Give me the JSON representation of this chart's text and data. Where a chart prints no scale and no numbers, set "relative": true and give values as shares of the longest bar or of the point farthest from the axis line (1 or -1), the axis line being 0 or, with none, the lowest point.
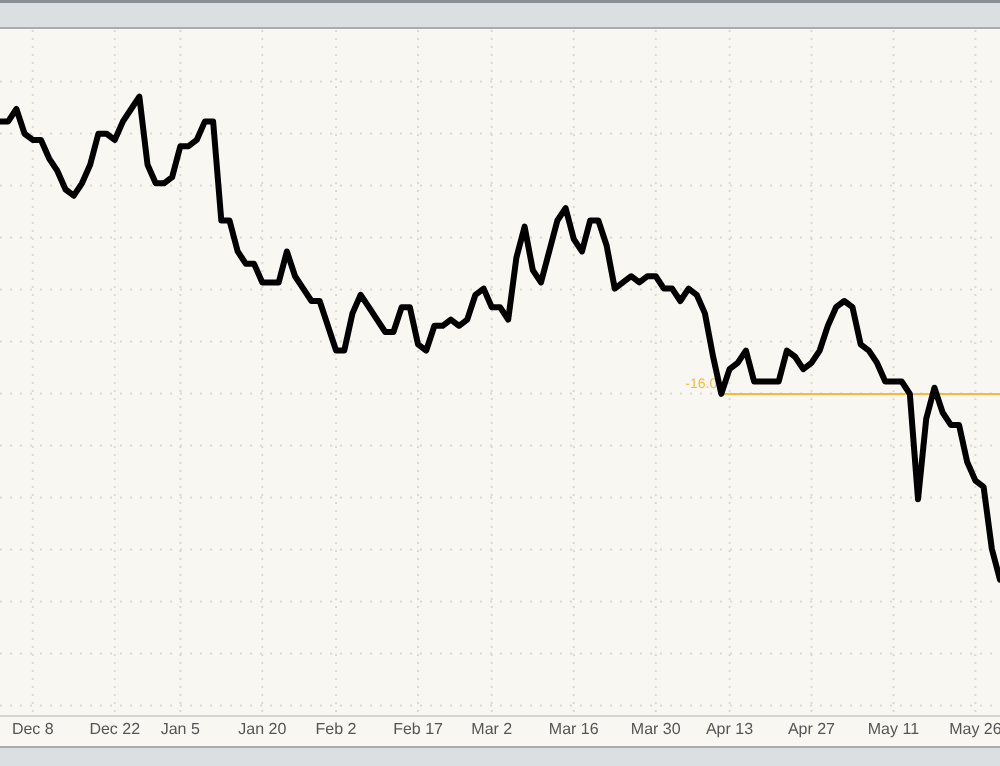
{
  "chart_data": {
    "type": "line",
    "relative": true,
    "grid": true,
    "marker": "none",
    "line_style": "solid",
    "categories": [
      null,
      null,
      null,
      null,
      "Dec 8",
      null,
      null,
      null,
      null,
      null,
      null,
      null,
      null,
      null,
      "Dec 22",
      null,
      null,
      null,
      null,
      null,
      null,
      null,
      "Jan 5",
      null,
      null,
      null,
      null,
      null,
      null,
      null,
      null,
      null,
      "Jan 20",
      null,
      null,
      null,
      null,
      null,
      null,
      null,
      null,
      "Feb 2",
      null,
      null,
      null,
      null,
      null,
      null,
      null,
      null,
      null,
      "Feb 17",
      null,
      null,
      null,
      null,
      null,
      null,
      null,
      null,
      "Mar 2",
      null,
      null,
      null,
      null,
      null,
      null,
      null,
      null,
      null,
      "Mar 16",
      null,
      null,
      null,
      null,
      null,
      null,
      null,
      null,
      null,
      "Mar 30",
      null,
      null,
      null,
      null,
      null,
      null,
      null,
      null,
      "Apr 13",
      null,
      null,
      null,
      null,
      null,
      null,
      null,
      null,
      null,
      "Apr 27",
      null,
      null,
      null,
      null,
      null,
      null,
      null,
      null,
      null,
      "May 11",
      null,
      null,
      null,
      null,
      null,
      null,
      null,
      null,
      null,
      "May 26",
      null,
      null,
      null
    ],
    "series": [
      {
        "color": "#000000",
        "values": [
          0.96,
          0.96,
          0.98,
          0.94,
          0.93,
          0.93,
          0.9,
          0.88,
          0.85,
          0.84,
          0.86,
          0.89,
          0.94,
          0.94,
          0.93,
          0.96,
          0.98,
          1.0,
          0.89,
          0.86,
          0.86,
          0.87,
          0.92,
          0.92,
          0.93,
          0.96,
          0.96,
          0.8,
          0.8,
          0.75,
          0.73,
          0.73,
          0.7,
          0.7,
          0.7,
          0.75,
          0.71,
          0.69,
          0.67,
          0.67,
          0.63,
          0.59,
          0.59,
          0.65,
          0.68,
          0.66,
          0.64,
          0.62,
          0.62,
          0.66,
          0.66,
          0.6,
          0.59,
          0.63,
          0.63,
          0.64,
          0.63,
          0.64,
          0.68,
          0.69,
          0.66,
          0.66,
          0.64,
          0.74,
          0.79,
          0.72,
          0.7,
          0.75,
          0.8,
          0.82,
          0.77,
          0.75,
          0.8,
          0.8,
          0.76,
          0.69,
          0.7,
          0.71,
          0.7,
          0.71,
          0.71,
          0.69,
          0.69,
          0.67,
          0.69,
          0.68,
          0.65,
          0.58,
          0.52,
          0.56,
          0.57,
          0.59,
          0.54,
          0.54,
          0.54,
          0.54,
          0.59,
          0.58,
          0.56,
          0.57,
          0.59,
          0.63,
          0.66,
          0.67,
          0.66,
          0.6,
          0.59,
          0.57,
          0.54,
          0.54,
          0.54,
          0.52,
          0.35,
          0.48,
          0.53,
          0.49,
          0.47,
          0.47,
          0.41,
          0.38,
          0.37,
          0.27,
          0.22
        ]
      }
    ],
    "ref_lines": [
      {
        "axis": "y",
        "value": 0.52,
        "color": "#f5b942"
      }
    ],
    "annotations": [
      "-16.0"
    ]
  }
}
